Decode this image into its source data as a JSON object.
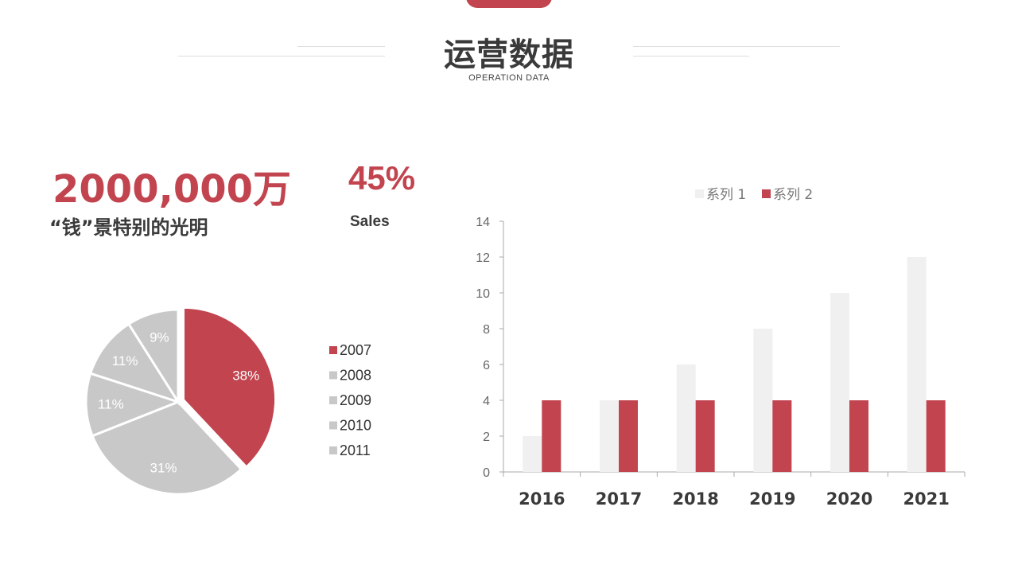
{
  "header": {
    "title": "运营数据",
    "subtitle": "OPERATION DATA"
  },
  "stats": {
    "amount": "2000,000万",
    "amount_label": "“钱”景特别的光明",
    "percent": "45%",
    "percent_label": "Sales"
  },
  "colors": {
    "accent": "#c1444f",
    "gray": "#c8c8c8",
    "light": "#f0f0f0",
    "text": "#3a3a3a"
  },
  "chart_data": [
    {
      "type": "pie",
      "categories": [
        "2007",
        "2008",
        "2009",
        "2010",
        "2011"
      ],
      "values": [
        38,
        31,
        11,
        11,
        9
      ],
      "labels": [
        "38%",
        "31%",
        "11%",
        "11%",
        "9%"
      ],
      "highlight": "2007",
      "legend": "right"
    },
    {
      "type": "bar",
      "categories": [
        "2016",
        "2017",
        "2018",
        "2019",
        "2020",
        "2021"
      ],
      "series": [
        {
          "name": "系列 1",
          "values": [
            2,
            4,
            6,
            8,
            10,
            12
          ]
        },
        {
          "name": "系列 2",
          "values": [
            4,
            4,
            4,
            4,
            4,
            4
          ]
        }
      ],
      "yticks": [
        "0",
        "2",
        "4",
        "6",
        "8",
        "10",
        "12",
        "14"
      ],
      "ylim": [
        0,
        14
      ],
      "grid": false,
      "legend": "top"
    }
  ]
}
